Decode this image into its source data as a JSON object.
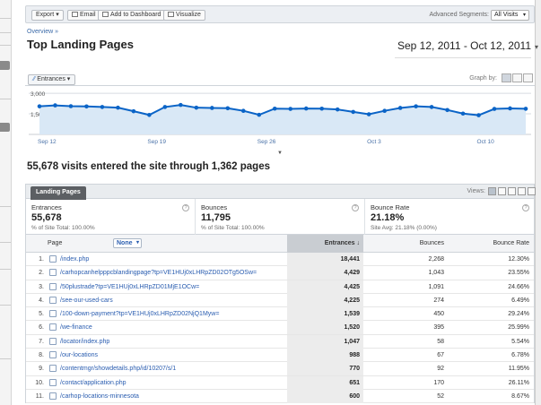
{
  "toolbar": {
    "export_label": "Export",
    "email_label": "Email",
    "add_dashboard_label": "Add to Dashboard",
    "visualize_label": "Visualize",
    "segments_label": "Advanced Segments:",
    "segments_value": "All Visits"
  },
  "breadcrumb": "Overview »",
  "page_title": "Top Landing Pages",
  "date_range": "Sep 12, 2011 - Oct 12, 2011",
  "graph": {
    "metric_label": "Entrances",
    "graph_by_label": "Graph by:"
  },
  "chart_data": {
    "type": "area",
    "y_tick_labels": [
      "3,000",
      "1,500"
    ],
    "y_ticks": [
      3000,
      1500
    ],
    "ylim": [
      0,
      3400
    ],
    "x_tick_labels": [
      "Sep 12",
      "Sep 19",
      "Sep 26",
      "Oct 3",
      "Oct 10"
    ],
    "series": [
      {
        "values": [
          2050,
          2120,
          2060,
          2040,
          2000,
          1950,
          1690,
          1420,
          2000,
          2150,
          1950,
          1930,
          1910,
          1720,
          1430,
          1880,
          1860,
          1890,
          1880,
          1820,
          1640,
          1470,
          1720,
          1930,
          2050,
          2000,
          1780,
          1520,
          1400,
          1860,
          1900,
          1870
        ],
        "color": "#0b64c7",
        "fill": "#d9e8f6"
      }
    ],
    "grid": true
  },
  "summary": "55,678 visits entered the site through 1,362 pages",
  "tabs": [
    "Landing Pages"
  ],
  "views_label": "Views:",
  "scorecards": [
    {
      "label": "Entrances",
      "value": "55,678",
      "sub": "% of Site Total: 100.00%"
    },
    {
      "label": "Bounces",
      "value": "11,795",
      "sub": "% of Site Total: 100.00%"
    },
    {
      "label": "Bounce Rate",
      "value": "21.18%",
      "sub": "Site Avg: 21.18% (0.00%)"
    }
  ],
  "table": {
    "headers": {
      "page": "Page",
      "none": "None",
      "entrances": "Entrances",
      "bounces": "Bounces",
      "bounce_rate": "Bounce Rate"
    },
    "rows": [
      {
        "n": "1.",
        "page": "/index.php",
        "entrances": "18,441",
        "bounces": "2,268",
        "bounce_rate": "12.30%"
      },
      {
        "n": "2.",
        "page": "/carhopcanhelpppcblandingpage?tp=VE1HUj0xLHRpZD02OTg5OSw=",
        "entrances": "4,429",
        "bounces": "1,043",
        "bounce_rate": "23.55%"
      },
      {
        "n": "3.",
        "page": "/50plustrade?tp=VE1HUj0xLHRpZD01MjE1OCw=",
        "entrances": "4,425",
        "bounces": "1,091",
        "bounce_rate": "24.66%"
      },
      {
        "n": "4.",
        "page": "/see-our-used-cars",
        "entrances": "4,225",
        "bounces": "274",
        "bounce_rate": "6.49%"
      },
      {
        "n": "5.",
        "page": "/100-down-payment?tp=VE1HUj0xLHRpZD02NjQ1Myw=",
        "entrances": "1,539",
        "bounces": "450",
        "bounce_rate": "29.24%"
      },
      {
        "n": "6.",
        "page": "/we-finance",
        "entrances": "1,520",
        "bounces": "395",
        "bounce_rate": "25.99%"
      },
      {
        "n": "7.",
        "page": "/locator/index.php",
        "entrances": "1,047",
        "bounces": "58",
        "bounce_rate": "5.54%"
      },
      {
        "n": "8.",
        "page": "/our-locations",
        "entrances": "988",
        "bounces": "67",
        "bounce_rate": "6.78%"
      },
      {
        "n": "9.",
        "page": "/contentmgr/showdetails.php/id/10207/s/1",
        "entrances": "770",
        "bounces": "92",
        "bounce_rate": "11.95%"
      },
      {
        "n": "10.",
        "page": "/contact/application.php",
        "entrances": "651",
        "bounces": "170",
        "bounce_rate": "26.11%"
      },
      {
        "n": "11.",
        "page": "/carhop-locations-minnesota",
        "entrances": "600",
        "bounces": "52",
        "bounce_rate": "8.67%"
      }
    ]
  }
}
